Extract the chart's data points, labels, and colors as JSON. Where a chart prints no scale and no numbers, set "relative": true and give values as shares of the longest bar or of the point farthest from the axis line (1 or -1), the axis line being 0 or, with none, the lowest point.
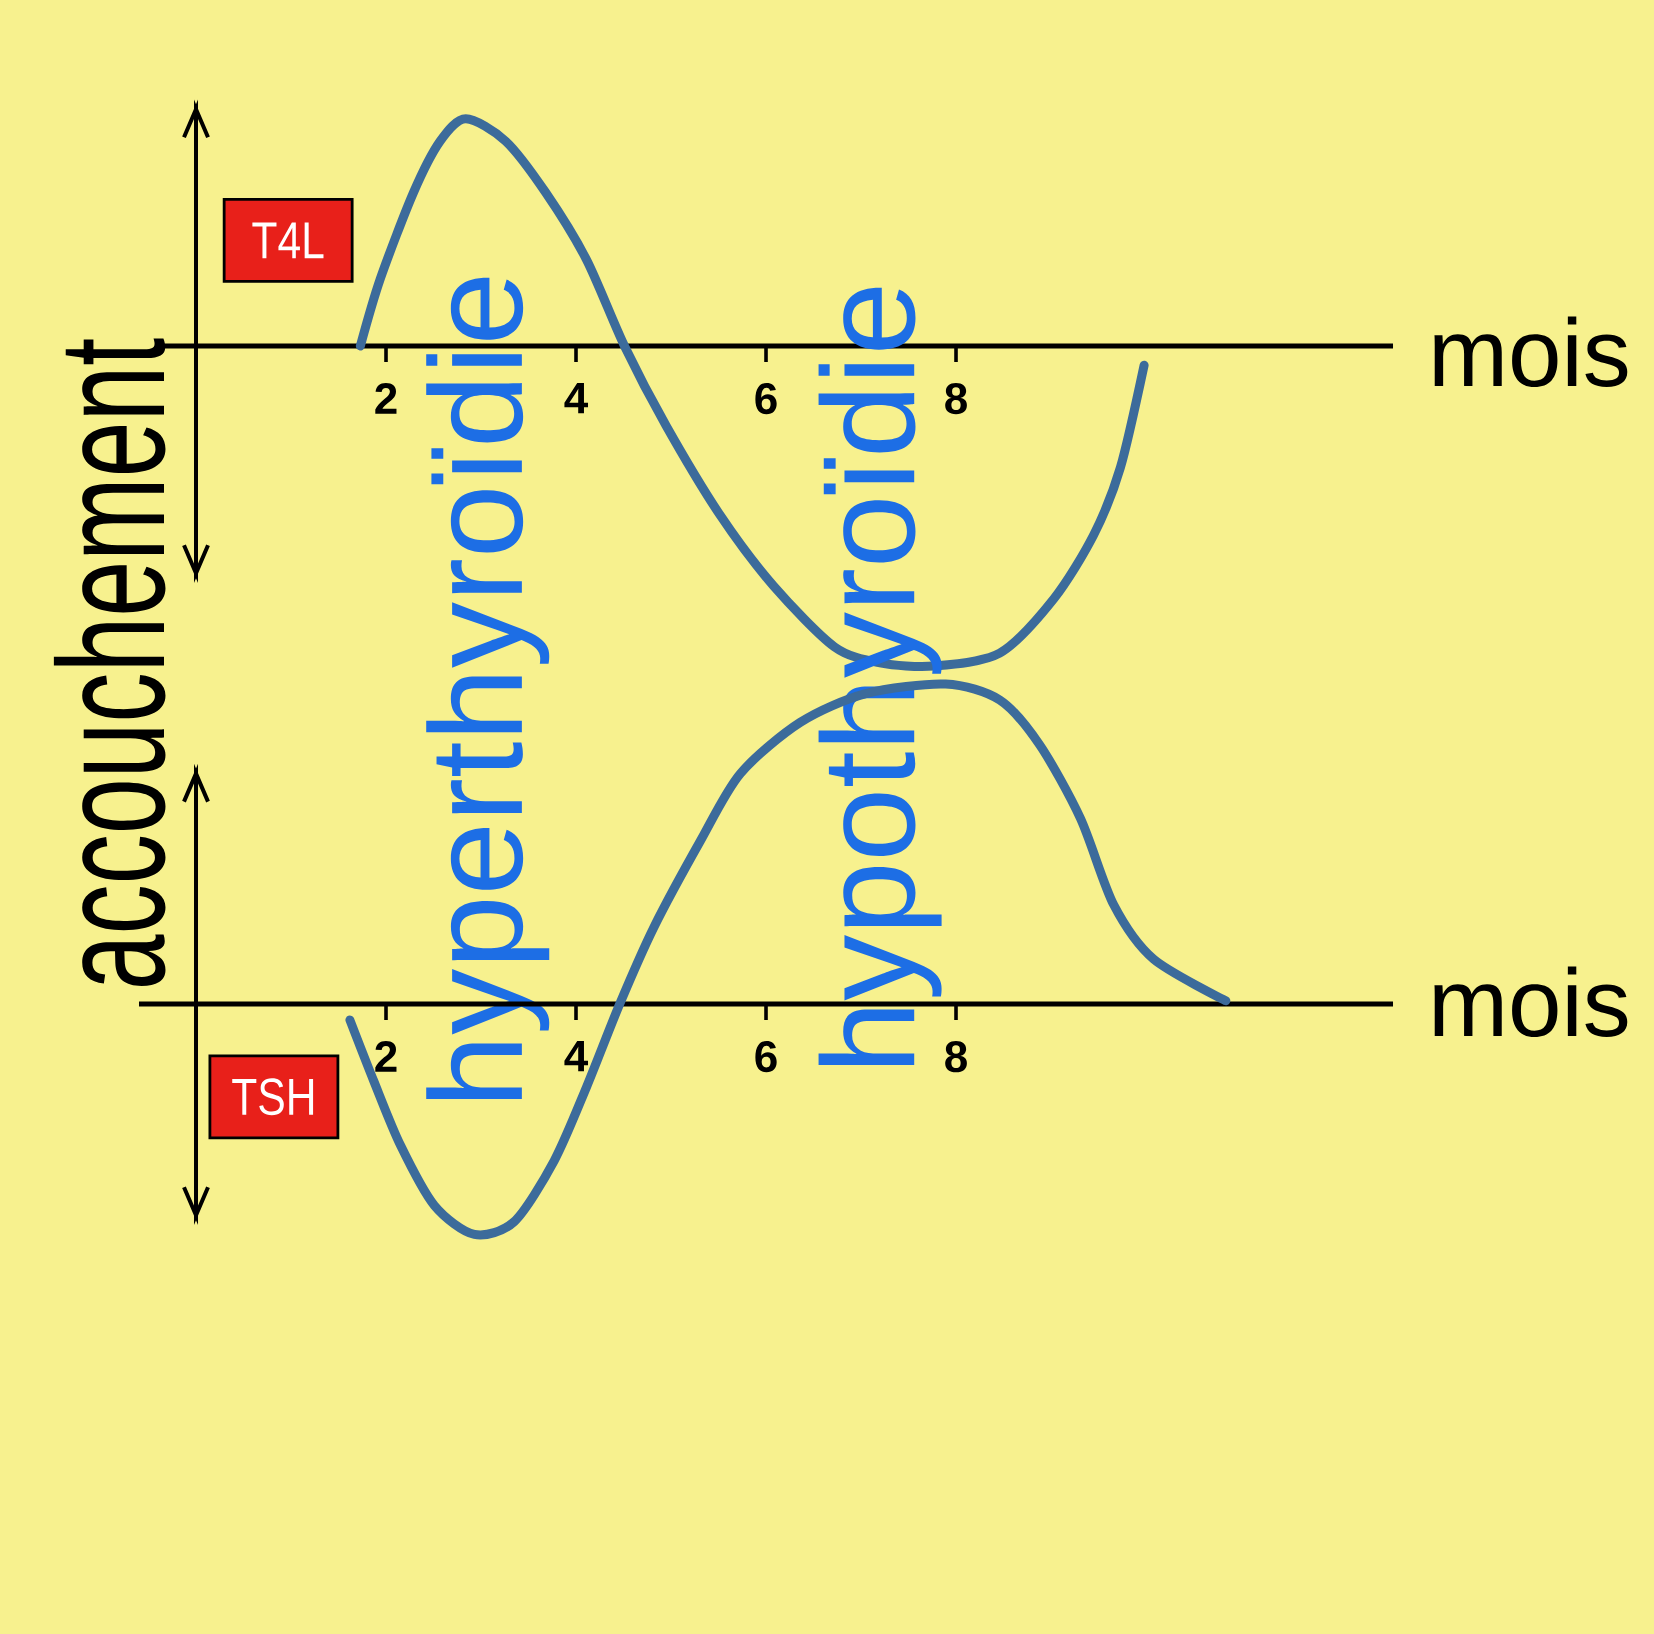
{
  "chart_data": [
    {
      "type": "line",
      "relative": true,
      "xlabel": "mois",
      "xlim": [
        -0.4,
        12.6
      ],
      "xticks": [
        2,
        4,
        6,
        8
      ],
      "series": [
        {
          "name": "T4L",
          "color": "#3c6b9b",
          "x": [
            1.73,
            1.94,
            2.29,
            2.57,
            2.84,
            3.26,
            3.68,
            4.11,
            4.51,
            4.95,
            5.52,
            6.08,
            6.72,
            7.2,
            7.77,
            8.46,
            9.03,
            9.45,
            9.73,
            9.98
          ],
          "values": [
            0,
            0.21,
            0.48,
            0.64,
            0.71,
            0.64,
            0.48,
            0.27,
            0,
            -0.25,
            -0.53,
            -0.75,
            -0.94,
            -0.99,
            -1,
            -0.96,
            -0.79,
            -0.59,
            -0.38,
            -0.06
          ]
        }
      ],
      "ref_lines": [
        {
          "axis": "x",
          "value": 0,
          "label": "accouchement"
        }
      ],
      "annotations": [
        "hyperthyroïdie",
        "hypothyroïdie"
      ]
    },
    {
      "type": "line",
      "relative": true,
      "xlabel": "mois",
      "xlim": [
        -0.6,
        12.6
      ],
      "xticks": [
        2,
        4,
        6,
        8
      ],
      "series": [
        {
          "name": "TSH",
          "color": "#3c6b9b",
          "x": [
            1.62,
            1.87,
            2.15,
            2.51,
            2.93,
            3.35,
            3.77,
            4.11,
            4.46,
            4.82,
            5.31,
            5.73,
            6.36,
            7.05,
            7.89,
            8.46,
            8.88,
            9.31,
            9.66,
            10.08,
            10.84
          ],
          "values": [
            -0.05,
            -0.24,
            -0.44,
            -0.63,
            -0.72,
            -0.68,
            -0.49,
            -0.26,
            0,
            0.24,
            0.51,
            0.72,
            0.88,
            0.97,
            1,
            0.95,
            0.81,
            0.58,
            0.31,
            0.14,
            0.01
          ]
        }
      ],
      "ref_lines": [
        {
          "axis": "x",
          "value": 0
        }
      ]
    }
  ]
}
